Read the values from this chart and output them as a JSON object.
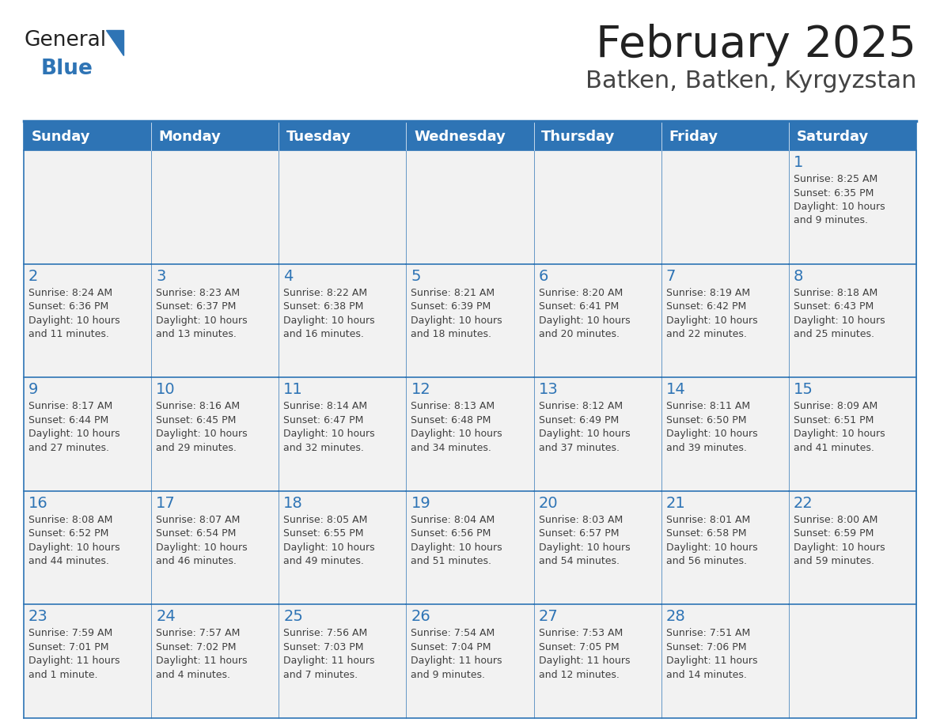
{
  "title": "February 2025",
  "subtitle": "Batken, Batken, Kyrgyzstan",
  "header_bg": "#2E74B5",
  "header_text_color": "#FFFFFF",
  "cell_bg": "#F2F2F2",
  "cell_bg_white": "#FFFFFF",
  "cell_border_color": "#2E74B5",
  "day_number_color": "#2E74B5",
  "cell_text_color": "#404040",
  "days_of_week": [
    "Sunday",
    "Monday",
    "Tuesday",
    "Wednesday",
    "Thursday",
    "Friday",
    "Saturday"
  ],
  "title_color": "#222222",
  "subtitle_color": "#444444",
  "logo_general_color": "#222222",
  "logo_blue_color": "#2E74B5",
  "weeks": [
    [
      {
        "day": null,
        "text": ""
      },
      {
        "day": null,
        "text": ""
      },
      {
        "day": null,
        "text": ""
      },
      {
        "day": null,
        "text": ""
      },
      {
        "day": null,
        "text": ""
      },
      {
        "day": null,
        "text": ""
      },
      {
        "day": 1,
        "text": "Sunrise: 8:25 AM\nSunset: 6:35 PM\nDaylight: 10 hours\nand 9 minutes."
      }
    ],
    [
      {
        "day": 2,
        "text": "Sunrise: 8:24 AM\nSunset: 6:36 PM\nDaylight: 10 hours\nand 11 minutes."
      },
      {
        "day": 3,
        "text": "Sunrise: 8:23 AM\nSunset: 6:37 PM\nDaylight: 10 hours\nand 13 minutes."
      },
      {
        "day": 4,
        "text": "Sunrise: 8:22 AM\nSunset: 6:38 PM\nDaylight: 10 hours\nand 16 minutes."
      },
      {
        "day": 5,
        "text": "Sunrise: 8:21 AM\nSunset: 6:39 PM\nDaylight: 10 hours\nand 18 minutes."
      },
      {
        "day": 6,
        "text": "Sunrise: 8:20 AM\nSunset: 6:41 PM\nDaylight: 10 hours\nand 20 minutes."
      },
      {
        "day": 7,
        "text": "Sunrise: 8:19 AM\nSunset: 6:42 PM\nDaylight: 10 hours\nand 22 minutes."
      },
      {
        "day": 8,
        "text": "Sunrise: 8:18 AM\nSunset: 6:43 PM\nDaylight: 10 hours\nand 25 minutes."
      }
    ],
    [
      {
        "day": 9,
        "text": "Sunrise: 8:17 AM\nSunset: 6:44 PM\nDaylight: 10 hours\nand 27 minutes."
      },
      {
        "day": 10,
        "text": "Sunrise: 8:16 AM\nSunset: 6:45 PM\nDaylight: 10 hours\nand 29 minutes."
      },
      {
        "day": 11,
        "text": "Sunrise: 8:14 AM\nSunset: 6:47 PM\nDaylight: 10 hours\nand 32 minutes."
      },
      {
        "day": 12,
        "text": "Sunrise: 8:13 AM\nSunset: 6:48 PM\nDaylight: 10 hours\nand 34 minutes."
      },
      {
        "day": 13,
        "text": "Sunrise: 8:12 AM\nSunset: 6:49 PM\nDaylight: 10 hours\nand 37 minutes."
      },
      {
        "day": 14,
        "text": "Sunrise: 8:11 AM\nSunset: 6:50 PM\nDaylight: 10 hours\nand 39 minutes."
      },
      {
        "day": 15,
        "text": "Sunrise: 8:09 AM\nSunset: 6:51 PM\nDaylight: 10 hours\nand 41 minutes."
      }
    ],
    [
      {
        "day": 16,
        "text": "Sunrise: 8:08 AM\nSunset: 6:52 PM\nDaylight: 10 hours\nand 44 minutes."
      },
      {
        "day": 17,
        "text": "Sunrise: 8:07 AM\nSunset: 6:54 PM\nDaylight: 10 hours\nand 46 minutes."
      },
      {
        "day": 18,
        "text": "Sunrise: 8:05 AM\nSunset: 6:55 PM\nDaylight: 10 hours\nand 49 minutes."
      },
      {
        "day": 19,
        "text": "Sunrise: 8:04 AM\nSunset: 6:56 PM\nDaylight: 10 hours\nand 51 minutes."
      },
      {
        "day": 20,
        "text": "Sunrise: 8:03 AM\nSunset: 6:57 PM\nDaylight: 10 hours\nand 54 minutes."
      },
      {
        "day": 21,
        "text": "Sunrise: 8:01 AM\nSunset: 6:58 PM\nDaylight: 10 hours\nand 56 minutes."
      },
      {
        "day": 22,
        "text": "Sunrise: 8:00 AM\nSunset: 6:59 PM\nDaylight: 10 hours\nand 59 minutes."
      }
    ],
    [
      {
        "day": 23,
        "text": "Sunrise: 7:59 AM\nSunset: 7:01 PM\nDaylight: 11 hours\nand 1 minute."
      },
      {
        "day": 24,
        "text": "Sunrise: 7:57 AM\nSunset: 7:02 PM\nDaylight: 11 hours\nand 4 minutes."
      },
      {
        "day": 25,
        "text": "Sunrise: 7:56 AM\nSunset: 7:03 PM\nDaylight: 11 hours\nand 7 minutes."
      },
      {
        "day": 26,
        "text": "Sunrise: 7:54 AM\nSunset: 7:04 PM\nDaylight: 11 hours\nand 9 minutes."
      },
      {
        "day": 27,
        "text": "Sunrise: 7:53 AM\nSunset: 7:05 PM\nDaylight: 11 hours\nand 12 minutes."
      },
      {
        "day": 28,
        "text": "Sunrise: 7:51 AM\nSunset: 7:06 PM\nDaylight: 11 hours\nand 14 minutes."
      },
      {
        "day": null,
        "text": ""
      }
    ]
  ]
}
